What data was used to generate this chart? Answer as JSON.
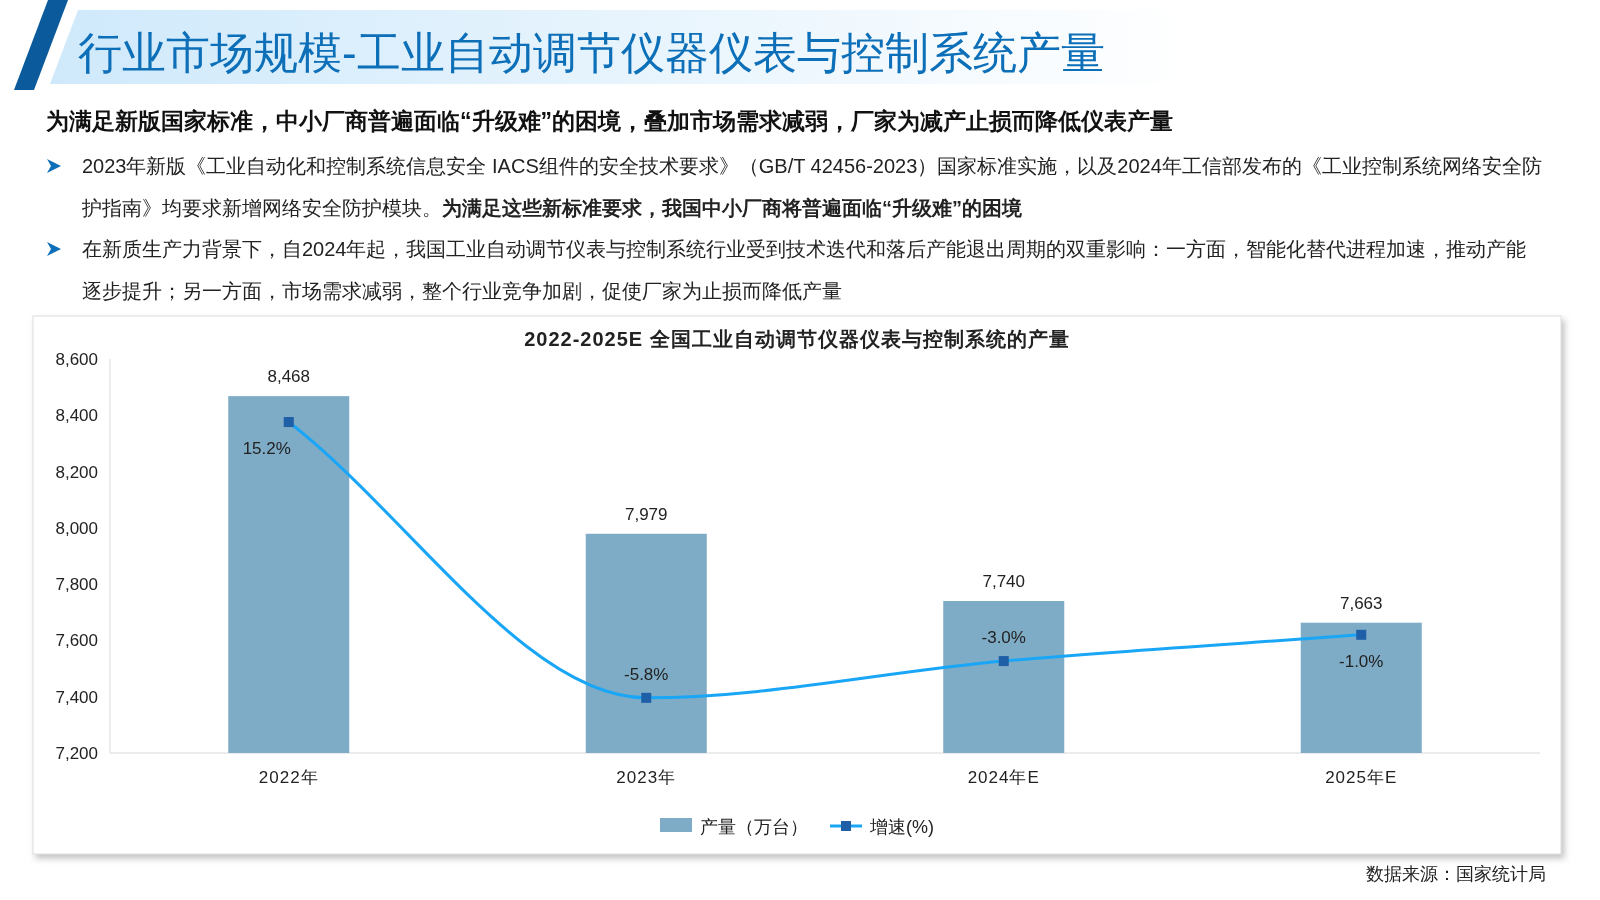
{
  "chart_data": {
    "type": "bar",
    "title": "行业市场规模-工业自动调节仪器仪表与控制系统产量",
    "subtitle": "为满足新版国家标准，中小厂商普遍面临“升级难”的困境，叠加市场需求减弱，厂家为减产止损而降低仪表产量",
    "annotations": [
      "2023年新版《工业自动化和控制系统信息安全 IACS组件的安全技术要求》（GB/T 42456-2023）国家标准实施，以及2024年工信部发布的《工业控制系统网络安全防护指南》均要求新增网络安全防护模块。",
      "为满足这些新标准要求，我国中小厂商将普遍面临“升级难”的困境",
      "在新质生产力背景下，自2024年起，我国工业自动调节仪表与控制系统行业受到技术迭代和落后产能退出周期的双重影响：一方面，智能化替代进程加速，推动产能逐步提升；另一方面，市场需求减弱，整个行业竞争加剧，促使厂家为止损而降低产量",
      "2022-2025E 全国工业自动调节仪器仪表与控制系统的产量",
      "数据来源：国家统计局"
    ],
    "categories": [
      "2022年",
      "2023年",
      "2024年E",
      "2025年E"
    ],
    "series": [
      {
        "name": "产量（万台）",
        "color": "#7eabc5",
        "values": [
          8468,
          7979,
          7740,
          7663
        ],
        "value_labels": [
          "8,468",
          "7,979",
          "7,740",
          "7,663"
        ]
      },
      {
        "name": "增速(%)",
        "type": "line",
        "axis": "y2",
        "color": "#1aa6f7",
        "marker": "square",
        "values": [
          15.2,
          -5.8,
          -3.0,
          -1.0
        ],
        "value_labels": [
          "15.2%",
          "-5.8%",
          "-3.0%",
          "-1.0%"
        ]
      }
    ],
    "ylim": [
      7200,
      8600
    ],
    "yticks": [
      {
        "value": 7200,
        "label": "7,200"
      },
      {
        "value": 7400,
        "label": "7,400"
      },
      {
        "value": 7600,
        "label": "7,600"
      },
      {
        "value": 7800,
        "label": "7,800"
      },
      {
        "value": 8000,
        "label": "8,000"
      },
      {
        "value": 8200,
        "label": "8,200"
      },
      {
        "value": 8400,
        "label": "8,400"
      },
      {
        "value": 8600,
        "label": "8,600"
      }
    ],
    "y2lim": [
      -10,
      20
    ],
    "grid": false,
    "legend": "bottom"
  }
}
